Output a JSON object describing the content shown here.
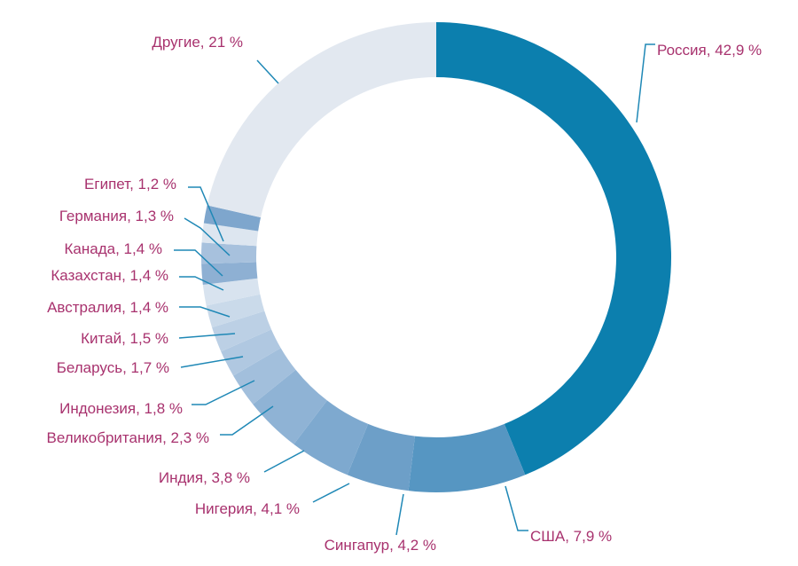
{
  "chart_data": {
    "type": "pie",
    "variant": "donut",
    "legend": "none",
    "slices": [
      {
        "name": "Россия",
        "value": 42.9,
        "label": "Россия, 42,9 %",
        "color": "#0c7fae"
      },
      {
        "name": "США",
        "value": 7.9,
        "label": "США, 7,9 %",
        "color": "#5696c2"
      },
      {
        "name": "Сингапур",
        "value": 4.2,
        "label": "Сингапур, 4,2 %",
        "color": "#6d9fc8"
      },
      {
        "name": "Нигерия",
        "value": 4.1,
        "label": "Нигерия, 4,1 %",
        "color": "#7ea9cf"
      },
      {
        "name": "Индия",
        "value": 3.8,
        "label": "Индия, 3,8 %",
        "color": "#8fb3d5"
      },
      {
        "name": "Великобритания",
        "value": 2.3,
        "label": "Великобритания, 2,3 %",
        "color": "#a2bfdc"
      },
      {
        "name": "Индонезия",
        "value": 1.8,
        "label": "Индонезия, 1,8 %",
        "color": "#b0c8e1"
      },
      {
        "name": "Беларусь",
        "value": 1.7,
        "label": "Беларусь, 1,7 %",
        "color": "#bcd0e5"
      },
      {
        "name": "Китай",
        "value": 1.5,
        "label": "Китай, 1,5 %",
        "color": "#cadaea"
      },
      {
        "name": "Австралия",
        "value": 1.4,
        "label": "Австралия, 1,4 %",
        "color": "#d8e3ef"
      },
      {
        "name": "Казахстан",
        "value": 1.4,
        "label": "Казахстан, 1,4 %",
        "color": "#8eb0d3"
      },
      {
        "name": "Канада",
        "value": 1.4,
        "label": "Канада, 1,4 %",
        "color": "#a7c1dd"
      },
      {
        "name": "Германия",
        "value": 1.3,
        "label": "Германия, 1,3 %",
        "color": "#dde6f0"
      },
      {
        "name": "Египет",
        "value": 1.2,
        "label": "Египет, 1,2 %",
        "color": "#7ea6cd"
      },
      {
        "name": "Другие",
        "value": 21,
        "label": "Другие, 21 %",
        "color": "#e2e8f0"
      }
    ]
  }
}
